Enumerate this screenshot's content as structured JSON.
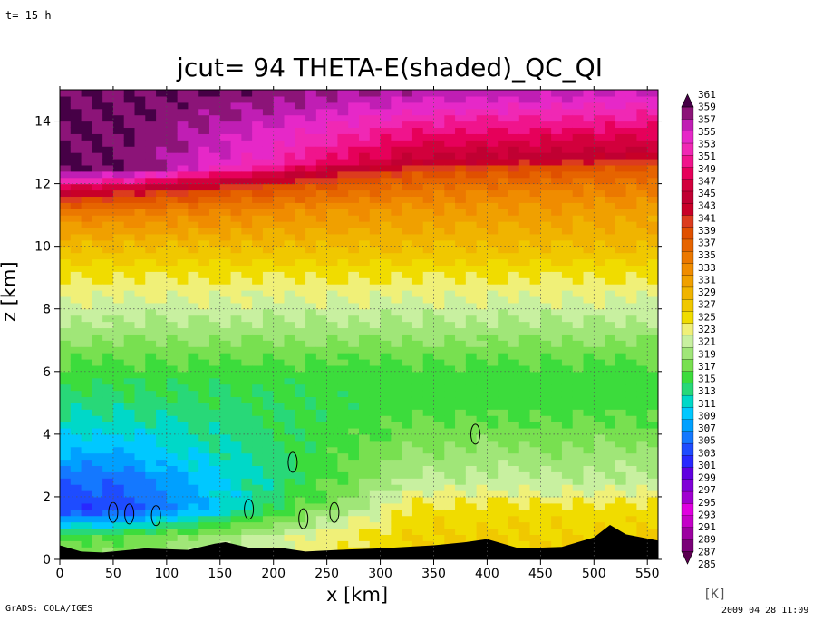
{
  "header": {
    "time_label": "t= 15 h"
  },
  "footer": {
    "left": "GrADS: COLA/IGES",
    "right": "2009 04 28 11:09"
  },
  "colorbar": {
    "unit": "[K]",
    "labels": [
      "285",
      "287",
      "289",
      "291",
      "293",
      "295",
      "297",
      "299",
      "301",
      "303",
      "305",
      "307",
      "309",
      "311",
      "313",
      "315",
      "317",
      "319",
      "321",
      "323",
      "325",
      "327",
      "329",
      "331",
      "333",
      "335",
      "337",
      "339",
      "341",
      "343",
      "345",
      "347",
      "349",
      "351",
      "353",
      "355",
      "357",
      "359",
      "361"
    ],
    "colors": [
      "#5a0050",
      "#7a0078",
      "#9c00a0",
      "#c400c8",
      "#e000e0",
      "#a000d0",
      "#8000d8",
      "#6000e0",
      "#2828ff",
      "#1e4cff",
      "#1478ff",
      "#00a0ff",
      "#00c8ff",
      "#00d8c8",
      "#28d878",
      "#3cdc3c",
      "#78e050",
      "#a0e678",
      "#c8f0a0",
      "#f0f078",
      "#f0dc00",
      "#f0c800",
      "#f0b400",
      "#f0a000",
      "#f08c00",
      "#eb7800",
      "#e66400",
      "#e05000",
      "#dc3c1e",
      "#c80028",
      "#c00032",
      "#d2003c",
      "#e6005a",
      "#f0148c",
      "#f028b4",
      "#e628c8",
      "#c01eb4",
      "#8c1478",
      "#460046"
    ]
  },
  "chart_data": {
    "type": "heatmap",
    "title": "jcut= 94  THETA-E(shaded)_QC_QI",
    "xlabel": "x [km]",
    "ylabel": "z [km]",
    "xlim": [
      0,
      560
    ],
    "ylim": [
      0,
      15
    ],
    "x_ticks": [
      "0",
      "50",
      "100",
      "150",
      "200",
      "250",
      "300",
      "350",
      "400",
      "450",
      "500",
      "550"
    ],
    "y_ticks": [
      "0",
      "2",
      "4",
      "6",
      "8",
      "10",
      "12",
      "14"
    ],
    "grid": "dotted",
    "theta_e_profile": {
      "z": [
        0,
        0.8,
        1.6,
        2.4,
        3.2,
        4.0,
        5.0,
        6.0,
        7.0,
        8.0,
        9.0,
        10.0,
        11.0,
        11.6,
        12.0,
        12.4,
        15.0
      ],
      "theta_e_west": [
        320,
        316,
        303,
        305,
        308,
        311,
        314,
        316,
        319,
        322,
        325,
        329,
        335,
        342,
        352,
        361,
        361
      ],
      "theta_e_east": [
        328,
        327,
        326,
        322,
        320,
        318,
        316,
        316,
        319,
        322,
        325,
        329,
        333,
        337,
        340,
        346,
        361
      ],
      "tropopause_km_west": 12.4,
      "tropopause_km_east": 13.0
    },
    "terrain": {
      "x": [
        0,
        20,
        40,
        80,
        120,
        145,
        155,
        180,
        210,
        230,
        260,
        300,
        350,
        380,
        400,
        430,
        470,
        500,
        515,
        530,
        560
      ],
      "z": [
        0.45,
        0.25,
        0.22,
        0.35,
        0.3,
        0.5,
        0.55,
        0.35,
        0.35,
        0.25,
        0.3,
        0.35,
        0.45,
        0.55,
        0.65,
        0.35,
        0.4,
        0.7,
        1.1,
        0.8,
        0.6
      ]
    },
    "cloud_contours": [
      {
        "x": 50,
        "z": 1.5
      },
      {
        "x": 65,
        "z": 1.45
      },
      {
        "x": 90,
        "z": 1.4
      },
      {
        "x": 177,
        "z": 1.6
      },
      {
        "x": 218,
        "z": 3.1
      },
      {
        "x": 228,
        "z": 1.3
      },
      {
        "x": 257,
        "z": 1.5
      },
      {
        "x": 389,
        "z": 4.0
      }
    ]
  }
}
